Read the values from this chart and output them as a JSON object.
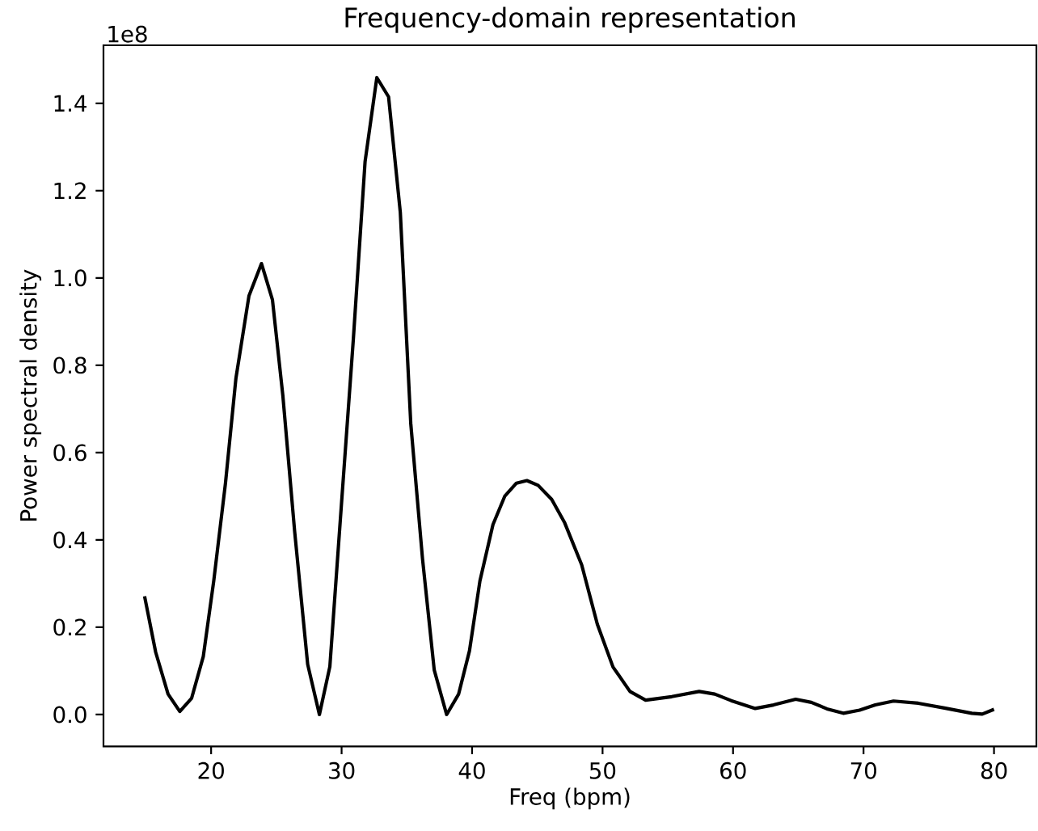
{
  "chart_data": {
    "type": "line",
    "title": "Frequency-domain representation",
    "xlabel": "Freq (bpm)",
    "ylabel": "Power spectral density",
    "annotations": [
      "1e8"
    ],
    "xlim": [
      11.75,
      83.25
    ],
    "ylim": [
      -0.073,
      1.533
    ],
    "xticks": [
      20,
      30,
      40,
      50,
      60,
      70,
      80
    ],
    "yticks": [
      {
        "value": 0,
        "label": "0.0"
      },
      0.2,
      0.4,
      0.6,
      0.8,
      {
        "value": 1,
        "label": "1.0"
      },
      1.2,
      1.4
    ],
    "grid": false,
    "marker": "none",
    "line_style": "solid",
    "series": [
      {
        "color": "#000000",
        "x": [
          14.9,
          15.75,
          16.7,
          17.6,
          18.5,
          19.4,
          20.2,
          21.1,
          21.9,
          22.9,
          23.86,
          24.7,
          25.5,
          26.4,
          27.4,
          28.3,
          29.1,
          29.9,
          30.9,
          31.8,
          32.7,
          33.6,
          34.5,
          35.3,
          36.2,
          37.1,
          38.05,
          38.97,
          39.8,
          40.6,
          41.6,
          42.5,
          43.4,
          44.2,
          45.06,
          46.1,
          47.1,
          48.4,
          49.6,
          50.8,
          52.1,
          53.3,
          55.3,
          57.4,
          58.6,
          59.85,
          61.7,
          63.1,
          64.8,
          66.0,
          67.2,
          68.45,
          69.7,
          70.9,
          72.3,
          74.2,
          76.2,
          78.3,
          79.1,
          80.0
        ],
        "values": [
          0.271,
          0.143,
          0.047,
          0.007,
          0.037,
          0.133,
          0.306,
          0.53,
          0.77,
          0.959,
          1.033,
          0.95,
          0.73,
          0.42,
          0.115,
          0,
          0.11,
          0.445,
          0.86,
          1.267,
          1.459,
          1.415,
          1.15,
          0.667,
          0.357,
          0.102,
          0,
          0.047,
          0.146,
          0.306,
          0.435,
          0.5,
          0.53,
          0.536,
          0.525,
          0.493,
          0.439,
          0.343,
          0.207,
          0.109,
          0.053,
          0.033,
          0.041,
          0.053,
          0.047,
          0.032,
          0.014,
          0.022,
          0.035,
          0.028,
          0.013,
          0.003,
          0.01,
          0.022,
          0.031,
          0.026,
          0.015,
          0.003,
          0.001,
          0.012
        ]
      }
    ]
  }
}
